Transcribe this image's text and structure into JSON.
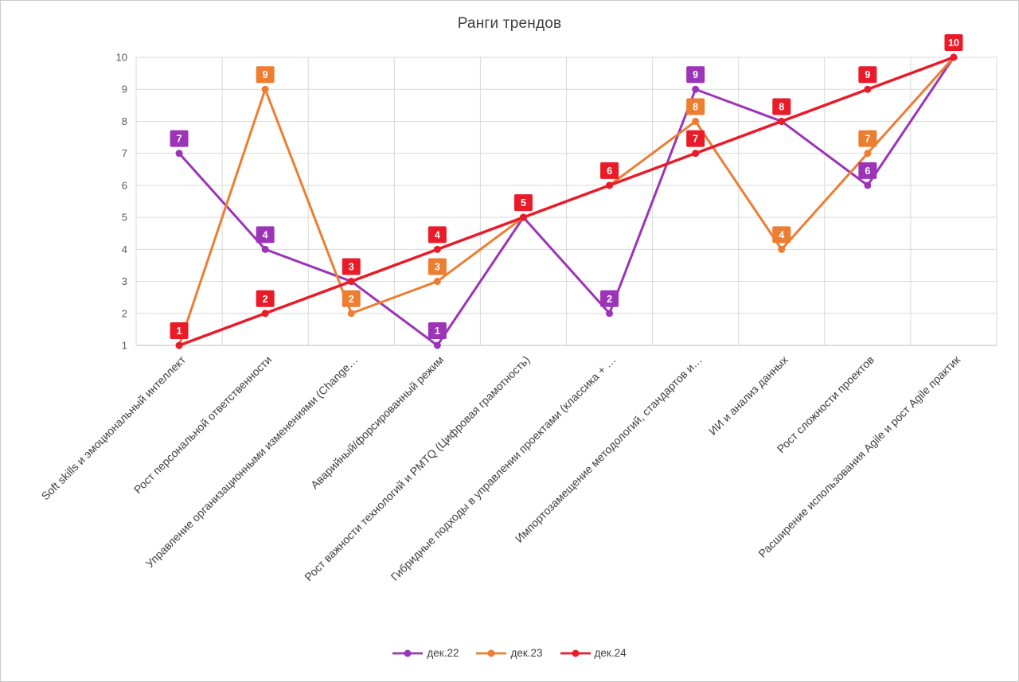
{
  "chart_data": {
    "type": "line",
    "title": "Ранги трендов",
    "xlabel": "",
    "ylabel": "",
    "ylim": [
      1,
      10
    ],
    "y_ticks": [
      1,
      2,
      3,
      4,
      5,
      6,
      7,
      8,
      9,
      10
    ],
    "grid": true,
    "legend_position": "bottom",
    "categories": [
      "Soft skills и эмоциональный интеллект",
      "Рост персональной ответственности",
      "Управление организационными изменениями (Change…",
      "Аварийный/форсированный режим",
      "Рост важности технологий и PMTQ (Цифровая грамотность)",
      "Гибридные подходы в управлении проектами (классика + …",
      "Импортозамещение методологий, стандартов и…",
      "ИИ и анализ данных",
      "Рост сложности проектов",
      "Расширение использования Agile и рост Agile практик"
    ],
    "series": [
      {
        "name": "дек.22",
        "color": "#9B34B7",
        "values": [
          7,
          4,
          3,
          1,
          5,
          2,
          9,
          8,
          6,
          10
        ],
        "label_shown": [
          true,
          true,
          false,
          true,
          false,
          true,
          true,
          false,
          true,
          false
        ]
      },
      {
        "name": "дек.23",
        "color": "#ED7D31",
        "values": [
          1,
          9,
          2,
          3,
          5,
          6,
          8,
          4,
          7,
          10
        ],
        "label_shown": [
          false,
          true,
          true,
          true,
          false,
          false,
          true,
          true,
          true,
          false
        ]
      },
      {
        "name": "дек.24",
        "color": "#EA1B29",
        "values": [
          1,
          2,
          3,
          4,
          5,
          6,
          7,
          8,
          9,
          10
        ],
        "label_shown": [
          true,
          true,
          true,
          true,
          true,
          true,
          true,
          true,
          true,
          true
        ]
      }
    ]
  },
  "style": {
    "gridline_color": "#d9d9d9",
    "axis_line_color": "#bfbfbf",
    "y_tick_color": "#595959",
    "x_label_color": "#3f3f3f",
    "label_text_color": "#ffffff"
  }
}
